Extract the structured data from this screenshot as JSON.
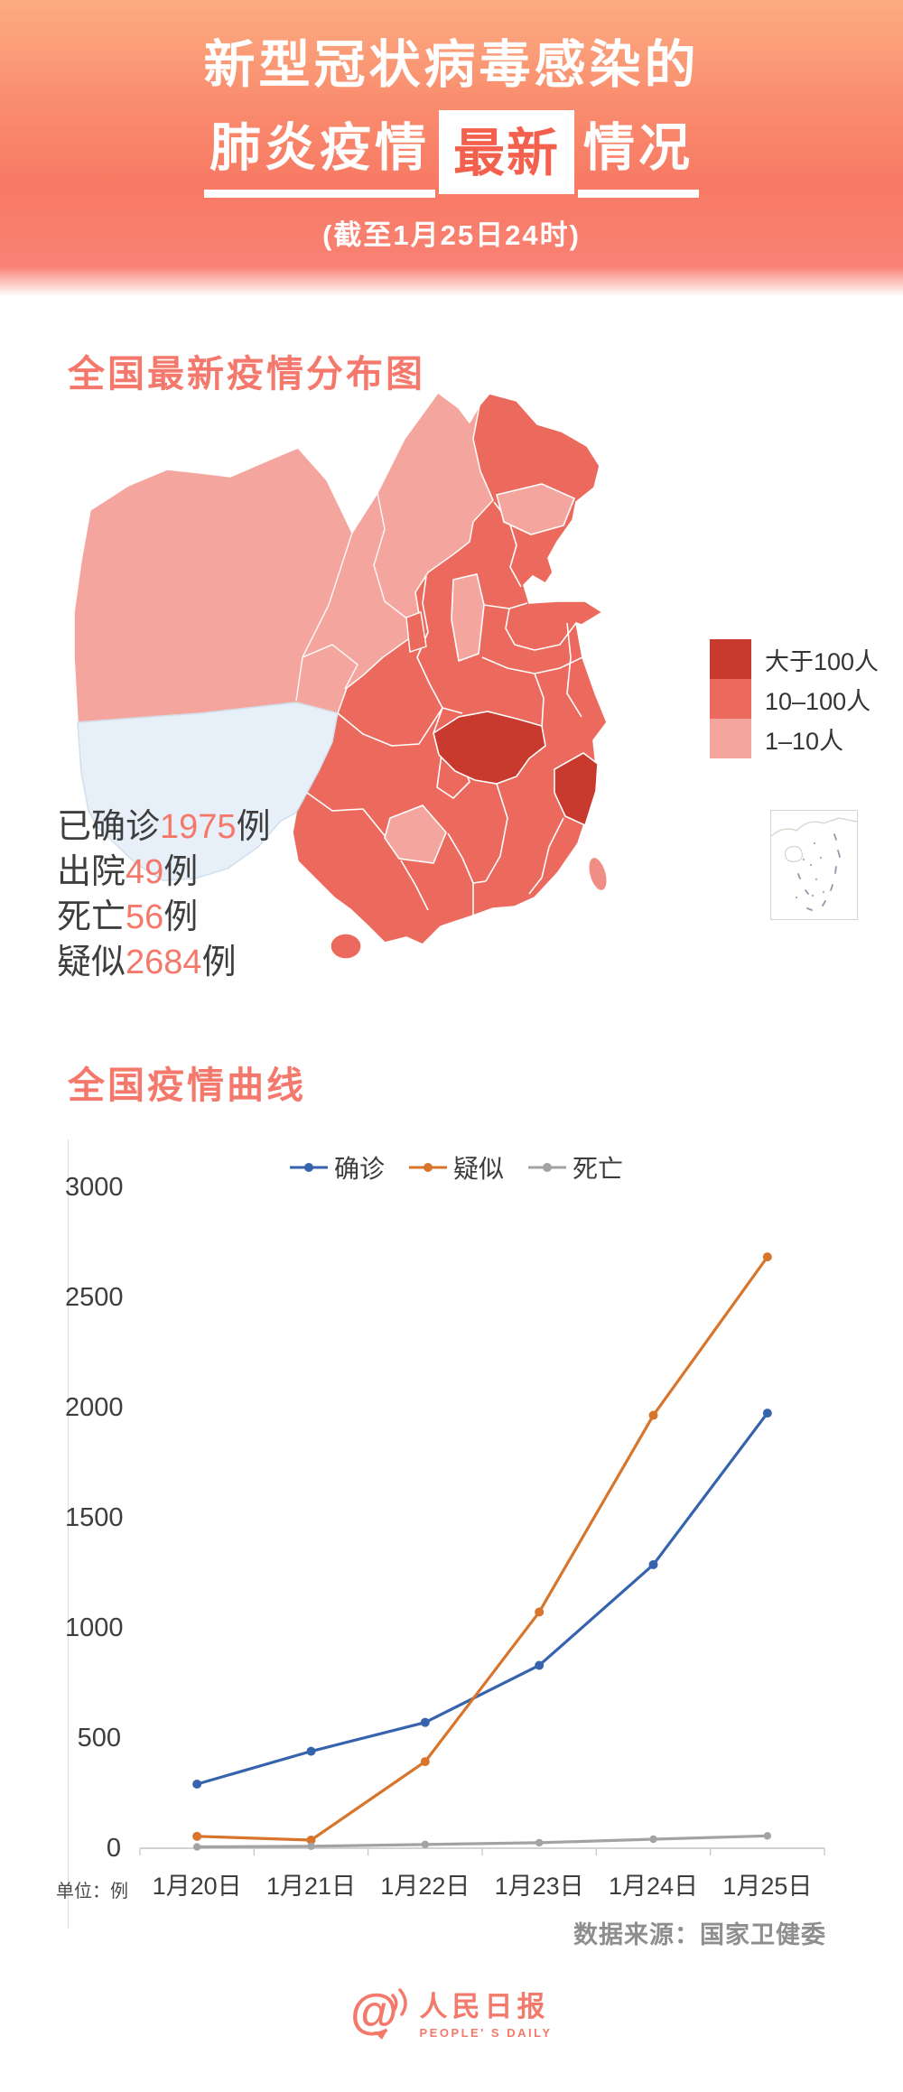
{
  "header": {
    "line1": "新型冠状病毒感染的",
    "line2_left": "肺炎疫情",
    "badge": "最新",
    "line2_right": "情况",
    "subtitle": "(截至1月25日24时)",
    "bg_top": "#fcac81",
    "bg_bottom": "#f98174",
    "badge_text_color": "#f4604e"
  },
  "map_section": {
    "title": "全国最新疫情分布图",
    "legend": [
      {
        "label": "大于100人",
        "color": "#c8392e"
      },
      {
        "label": "10–100人",
        "color": "#ec6a5d"
      },
      {
        "label": "1–10人",
        "color": "#f4a59e"
      }
    ],
    "no_case_color": "#e7f0f8",
    "taiwan_color": "#ef8e85",
    "stats": [
      {
        "label": "已确诊",
        "value": "1975",
        "unit": "例"
      },
      {
        "label": "出院",
        "value": "49",
        "unit": "例"
      },
      {
        "label": "死亡",
        "value": "56",
        "unit": "例"
      },
      {
        "label": "疑似",
        "value": "2684",
        "unit": "例"
      }
    ]
  },
  "chart_data": {
    "type": "line",
    "title": "全国疫情曲线",
    "categories": [
      "1月20日",
      "1月21日",
      "1月22日",
      "1月23日",
      "1月24日",
      "1月25日"
    ],
    "series": [
      {
        "name": "确诊",
        "color": "#3563ae",
        "values": [
          291,
          440,
          571,
          830,
          1287,
          1975
        ]
      },
      {
        "name": "疑似",
        "color": "#d6752b",
        "values": [
          54,
          37,
          393,
          1072,
          1965,
          2684
        ]
      },
      {
        "name": "死亡",
        "color": "#a3a3a3",
        "values": [
          6,
          9,
          17,
          25,
          41,
          56
        ]
      }
    ],
    "ylim": [
      0,
      3000
    ],
    "yticks": [
      3000,
      2500,
      2000,
      1500,
      1000,
      500,
      0
    ],
    "grid": false,
    "legend_position": "top",
    "unit_note": "单位：例",
    "source": "数据来源：国家卫健委"
  },
  "footer": {
    "at_symbol": "@",
    "name": "人民日报",
    "subtitle": "PEOPLE' S DAILY",
    "color": "#f3796b"
  },
  "accent_color": "#f4786c"
}
